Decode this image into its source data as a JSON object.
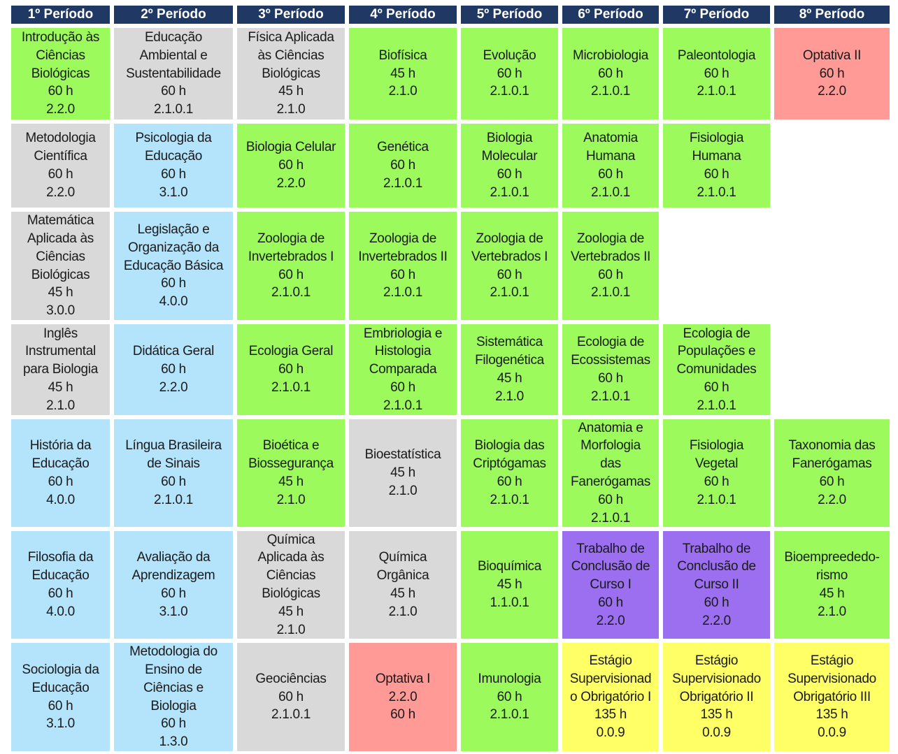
{
  "table": {
    "headers": [
      "1º Período",
      "2º Período",
      "3º Período",
      "4º Período",
      "5º Período",
      "6º Período",
      "7º Período",
      "8º Período"
    ],
    "rows": [
      [
        {
          "lines": [
            "Introdução às",
            "Ciências",
            "Biológicas",
            "60 h",
            "2.2.0"
          ],
          "color": "#9cfa5c"
        },
        {
          "lines": [
            "Educação",
            "Ambiental e",
            "Sustentabilidade",
            "60 h",
            "2.1.0.1"
          ],
          "color": "#d9d9d9"
        },
        {
          "lines": [
            "Física Aplicada",
            "às Ciências",
            "Biológicas",
            "45 h",
            "2.1.0"
          ],
          "color": "#d9d9d9"
        },
        {
          "lines": [
            "Biofísica",
            "45 h",
            "2.1.0"
          ],
          "color": "#9cfa5c"
        },
        {
          "lines": [
            "Evolução",
            "60 h",
            "2.1.0.1"
          ],
          "color": "#9cfa5c"
        },
        {
          "lines": [
            "Microbiologia",
            "60 h",
            "2.1.0.1"
          ],
          "color": "#9cfa5c"
        },
        {
          "lines": [
            "Paleontologia",
            "60 h",
            "2.1.0.1"
          ],
          "color": "#9cfa5c"
        },
        {
          "lines": [
            "Optativa II",
            "60 h",
            "2.2.0"
          ],
          "color": "#ff9a96"
        }
      ],
      [
        {
          "lines": [
            "Metodologia",
            "Científica",
            "60 h",
            "2.2.0"
          ],
          "color": "#d9d9d9"
        },
        {
          "lines": [
            "Psicologia da",
            "Educação",
            "60 h",
            "3.1.0"
          ],
          "color": "#b4e4fb"
        },
        {
          "lines": [
            "Biologia Celular",
            "60 h",
            "2.2.0"
          ],
          "color": "#9cfa5c"
        },
        {
          "lines": [
            "Genética",
            "60 h",
            "2.1.0.1"
          ],
          "color": "#9cfa5c"
        },
        {
          "lines": [
            "Biologia",
            "Molecular",
            "60 h",
            "2.1.0.1"
          ],
          "color": "#9cfa5c"
        },
        {
          "lines": [
            "Anatomia",
            "Humana",
            "60 h",
            "2.1.0.1"
          ],
          "color": "#9cfa5c"
        },
        {
          "lines": [
            "Fisiologia",
            "Humana",
            "60 h",
            "2.1.0.1"
          ],
          "color": "#9cfa5c"
        },
        null
      ],
      [
        {
          "lines": [
            "Matemática",
            "Aplicada às",
            "Ciências",
            "Biológicas",
            "45 h",
            "3.0.0"
          ],
          "color": "#d9d9d9"
        },
        {
          "lines": [
            "Legislação e",
            "Organização da",
            "Educação Básica",
            "60 h",
            "4.0.0"
          ],
          "color": "#b4e4fb"
        },
        {
          "lines": [
            "Zoologia de",
            "Invertebrados I",
            "60 h",
            "2.1.0.1"
          ],
          "color": "#9cfa5c"
        },
        {
          "lines": [
            "Zoologia de",
            "Invertebrados II",
            "60 h",
            "2.1.0.1"
          ],
          "color": "#9cfa5c"
        },
        {
          "lines": [
            "Zoologia de",
            "Vertebrados I",
            "60 h",
            "2.1.0.1"
          ],
          "color": "#9cfa5c"
        },
        {
          "lines": [
            "Zoologia de",
            "Vertebrados II",
            "60 h",
            "2.1.0.1"
          ],
          "color": "#9cfa5c"
        },
        null,
        null
      ],
      [
        {
          "lines": [
            "Inglês",
            "Instrumental",
            "para Biologia",
            "45 h",
            "2.1.0"
          ],
          "color": "#d9d9d9"
        },
        {
          "lines": [
            "Didática Geral",
            "60 h",
            "2.2.0"
          ],
          "color": "#b4e4fb"
        },
        {
          "lines": [
            "Ecologia Geral",
            "60 h",
            "2.1.0.1"
          ],
          "color": "#9cfa5c"
        },
        {
          "lines": [
            "Embriologia e",
            "Histologia",
            "Comparada",
            "60 h",
            "2.1.0.1"
          ],
          "color": "#9cfa5c"
        },
        {
          "lines": [
            "Sistemática",
            "Filogenética",
            "45 h",
            "2.1.0"
          ],
          "color": "#9cfa5c"
        },
        {
          "lines": [
            "Ecologia de",
            "Ecossistemas",
            "60 h",
            "2.1.0.1"
          ],
          "color": "#9cfa5c"
        },
        {
          "lines": [
            "Ecologia de",
            "Populações e",
            "Comunidades",
            "60 h",
            "2.1.0.1"
          ],
          "color": "#9cfa5c"
        },
        null
      ],
      [
        {
          "lines": [
            "História da",
            "Educação",
            "60 h",
            "4.0.0"
          ],
          "color": "#b4e4fb"
        },
        {
          "lines": [
            "Língua Brasileira",
            "de Sinais",
            "60 h",
            "2.1.0.1"
          ],
          "color": "#b4e4fb"
        },
        {
          "lines": [
            "Bioética e",
            "Biossegurança",
            "45 h",
            "2.1.0"
          ],
          "color": "#9cfa5c"
        },
        {
          "lines": [
            "Bioestatística",
            "45 h",
            "2.1.0"
          ],
          "color": "#d9d9d9"
        },
        {
          "lines": [
            "Biologia das",
            "Criptógamas",
            "60 h",
            "2.1.0.1"
          ],
          "color": "#9cfa5c"
        },
        {
          "lines": [
            "Anatomia e",
            "Morfologia",
            "das",
            "Fanerógamas",
            "60 h",
            "2.1.0.1"
          ],
          "color": "#9cfa5c"
        },
        {
          "lines": [
            "Fisiologia",
            "Vegetal",
            "60 h",
            "2.1.0.1"
          ],
          "color": "#9cfa5c"
        },
        {
          "lines": [
            "Taxonomia das",
            "Fanerógamas",
            "60 h",
            "2.2.0"
          ],
          "color": "#9cfa5c"
        }
      ],
      [
        {
          "lines": [
            "Filosofia da",
            "Educação",
            "60 h",
            "4.0.0"
          ],
          "color": "#b4e4fb"
        },
        {
          "lines": [
            "Avaliação da",
            "Aprendizagem",
            "60 h",
            "3.1.0"
          ],
          "color": "#b4e4fb"
        },
        {
          "lines": [
            "Química",
            "Aplicada às",
            "Ciências",
            "Biológicas",
            "45 h",
            "2.1.0"
          ],
          "color": "#d9d9d9"
        },
        {
          "lines": [
            "Química",
            "Orgânica",
            "45 h",
            "2.1.0"
          ],
          "color": "#d9d9d9"
        },
        {
          "lines": [
            "Bioquímica",
            "45 h",
            "1.1.0.1"
          ],
          "color": "#9cfa5c"
        },
        {
          "lines": [
            "Trabalho de",
            "Conclusão de",
            "Curso I",
            "60 h",
            "2.2.0"
          ],
          "color": "#9b6ff0"
        },
        {
          "lines": [
            "Trabalho de",
            "Conclusão de",
            "Curso II",
            "60 h",
            "2.2.0"
          ],
          "color": "#9b6ff0"
        },
        {
          "lines": [
            "Bioempreededo-",
            "rismo",
            "45 h",
            "2.1.0"
          ],
          "color": "#9cfa5c"
        }
      ],
      [
        {
          "lines": [
            "Sociologia da",
            "Educação",
            "60 h",
            "3.1.0"
          ],
          "color": "#b4e4fb"
        },
        {
          "lines": [
            "Metodologia do",
            "Ensino de",
            "Ciências e",
            "Biologia",
            "60 h",
            "1.3.0"
          ],
          "color": "#b4e4fb"
        },
        {
          "lines": [
            "Geociências",
            "60 h",
            "2.1.0.1"
          ],
          "color": "#d9d9d9"
        },
        {
          "lines": [
            "Optativa I",
            "2.2.0",
            "60 h"
          ],
          "color": "#ff9a96"
        },
        {
          "lines": [
            "Imunologia",
            "60 h",
            "2.1.0.1"
          ],
          "color": "#9cfa5c"
        },
        {
          "lines": [
            "Estágio",
            "Supervisionad",
            "o Obrigatório I",
            "135 h",
            "0.0.9"
          ],
          "color": "#ffff66"
        },
        {
          "lines": [
            "Estágio",
            "Supervisionado",
            "Obrigatório II",
            "135 h",
            "0.0.9"
          ],
          "color": "#ffff66"
        },
        {
          "lines": [
            "Estágio",
            "Supervisionado",
            "Obrigatório III",
            "135 h",
            "0.0.9"
          ],
          "color": "#ffff66"
        }
      ]
    ]
  }
}
